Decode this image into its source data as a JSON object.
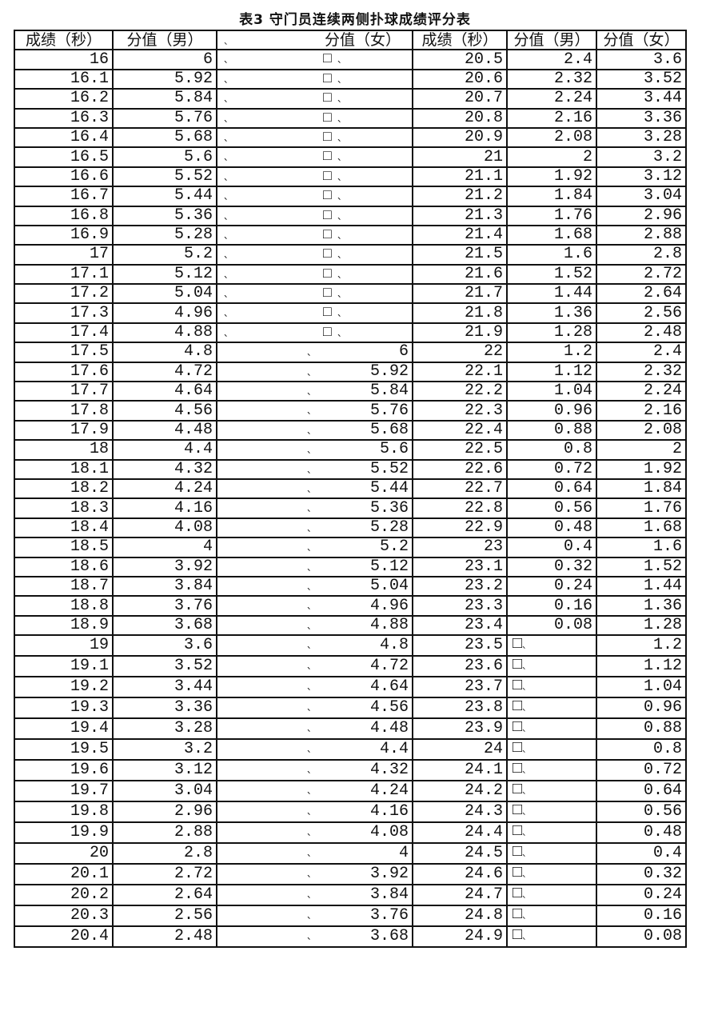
{
  "title": "表3 守门员连续两侧扑球成绩评分表",
  "headers": [
    "成绩（秒）",
    "分值（男）",
    "分值（女）",
    "成绩（秒）",
    "分值（男）",
    "分值（女）"
  ],
  "blank_mark": "□",
  "rows": [
    [
      "16",
      "6",
      "",
      "20.5",
      "2.4",
      "3.6"
    ],
    [
      "16.1",
      "5.92",
      "",
      "20.6",
      "2.32",
      "3.52"
    ],
    [
      "16.2",
      "5.84",
      "",
      "20.7",
      "2.24",
      "3.44"
    ],
    [
      "16.3",
      "5.76",
      "",
      "20.8",
      "2.16",
      "3.36"
    ],
    [
      "16.4",
      "5.68",
      "",
      "20.9",
      "2.08",
      "3.28"
    ],
    [
      "16.5",
      "5.6",
      "",
      "21",
      "2",
      "3.2"
    ],
    [
      "16.6",
      "5.52",
      "",
      "21.1",
      "1.92",
      "3.12"
    ],
    [
      "16.7",
      "5.44",
      "",
      "21.2",
      "1.84",
      "3.04"
    ],
    [
      "16.8",
      "5.36",
      "",
      "21.3",
      "1.76",
      "2.96"
    ],
    [
      "16.9",
      "5.28",
      "",
      "21.4",
      "1.68",
      "2.88"
    ],
    [
      "17",
      "5.2",
      "",
      "21.5",
      "1.6",
      "2.8"
    ],
    [
      "17.1",
      "5.12",
      "",
      "21.6",
      "1.52",
      "2.72"
    ],
    [
      "17.2",
      "5.04",
      "",
      "21.7",
      "1.44",
      "2.64"
    ],
    [
      "17.3",
      "4.96",
      "",
      "21.8",
      "1.36",
      "2.56"
    ],
    [
      "17.4",
      "4.88",
      "",
      "21.9",
      "1.28",
      "2.48"
    ],
    [
      "17.5",
      "4.8",
      "6",
      "22",
      "1.2",
      "2.4"
    ],
    [
      "17.6",
      "4.72",
      "5.92",
      "22.1",
      "1.12",
      "2.32"
    ],
    [
      "17.7",
      "4.64",
      "5.84",
      "22.2",
      "1.04",
      "2.24"
    ],
    [
      "17.8",
      "4.56",
      "5.76",
      "22.3",
      "0.96",
      "2.16"
    ],
    [
      "17.9",
      "4.48",
      "5.68",
      "22.4",
      "0.88",
      "2.08"
    ],
    [
      "18",
      "4.4",
      "5.6",
      "22.5",
      "0.8",
      "2"
    ],
    [
      "18.1",
      "4.32",
      "5.52",
      "22.6",
      "0.72",
      "1.92"
    ],
    [
      "18.2",
      "4.24",
      "5.44",
      "22.7",
      "0.64",
      "1.84"
    ],
    [
      "18.3",
      "4.16",
      "5.36",
      "22.8",
      "0.56",
      "1.76"
    ],
    [
      "18.4",
      "4.08",
      "5.28",
      "22.9",
      "0.48",
      "1.68"
    ],
    [
      "18.5",
      "4",
      "5.2",
      "23",
      "0.4",
      "1.6"
    ],
    [
      "18.6",
      "3.92",
      "5.12",
      "23.1",
      "0.32",
      "1.52"
    ],
    [
      "18.7",
      "3.84",
      "5.04",
      "23.2",
      "0.24",
      "1.44"
    ],
    [
      "18.8",
      "3.76",
      "4.96",
      "23.3",
      "0.16",
      "1.36"
    ],
    [
      "18.9",
      "3.68",
      "4.88",
      "23.4",
      "0.08",
      "1.28"
    ],
    [
      "19",
      "3.6",
      "4.8",
      "23.5",
      "",
      "1.2"
    ],
    [
      "19.1",
      "3.52",
      "4.72",
      "23.6",
      "",
      "1.12"
    ],
    [
      "19.2",
      "3.44",
      "4.64",
      "23.7",
      "",
      "1.04"
    ],
    [
      "19.3",
      "3.36",
      "4.56",
      "23.8",
      "",
      "0.96"
    ],
    [
      "19.4",
      "3.28",
      "4.48",
      "23.9",
      "",
      "0.88"
    ],
    [
      "19.5",
      "3.2",
      "4.4",
      "24",
      "",
      "0.8"
    ],
    [
      "19.6",
      "3.12",
      "4.32",
      "24.1",
      "",
      "0.72"
    ],
    [
      "19.7",
      "3.04",
      "4.24",
      "24.2",
      "",
      "0.64"
    ],
    [
      "19.8",
      "2.96",
      "4.16",
      "24.3",
      "",
      "0.56"
    ],
    [
      "19.9",
      "2.88",
      "4.08",
      "24.4",
      "",
      "0.48"
    ],
    [
      "20",
      "2.8",
      "4",
      "24.5",
      "",
      "0.4"
    ],
    [
      "20.1",
      "2.72",
      "3.92",
      "24.6",
      "",
      "0.32"
    ],
    [
      "20.2",
      "2.64",
      "3.84",
      "24.7",
      "",
      "0.24"
    ],
    [
      "20.3",
      "2.56",
      "3.76",
      "24.8",
      "",
      "0.16"
    ],
    [
      "20.4",
      "2.48",
      "3.68",
      "24.9",
      "",
      "0.08"
    ]
  ]
}
